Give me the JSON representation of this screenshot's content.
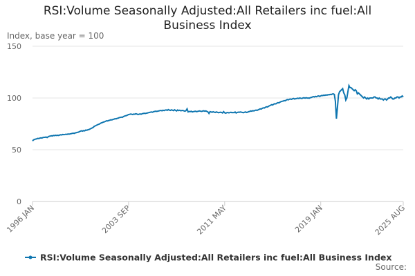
{
  "chart_data": {
    "type": "line",
    "title": "RSI:Volume Seasonally Adjusted:All Retailers inc fuel:All Business Index",
    "subtitle": "Index, base year = 100",
    "source": "Source:",
    "ylim": [
      0,
      150
    ],
    "yticks": [
      0,
      50,
      100,
      150
    ],
    "grid": true,
    "categories": [
      "1996 JAN",
      null,
      null,
      null,
      null,
      null,
      null,
      null,
      null,
      null,
      null,
      null,
      null,
      null,
      null,
      null,
      null,
      null,
      null,
      null,
      null,
      null,
      null,
      null,
      null,
      null,
      null,
      null,
      null,
      null,
      null,
      null,
      null,
      null,
      null,
      null,
      null,
      null,
      null,
      null,
      null,
      null,
      null,
      null,
      null,
      null,
      null,
      null,
      null,
      null,
      null,
      null,
      null,
      null,
      null,
      null,
      null,
      null,
      null,
      null,
      null,
      null,
      null,
      null,
      null,
      null,
      null,
      null,
      null,
      null,
      null,
      null,
      null,
      null,
      null,
      null,
      null,
      null,
      null,
      null,
      null,
      null,
      null,
      null,
      null,
      null,
      null,
      null,
      null,
      null,
      null,
      null,
      "2003 SEP",
      null,
      null,
      null,
      null,
      null,
      null,
      null,
      null,
      null,
      null,
      null,
      null,
      null,
      null,
      null,
      null,
      null,
      null,
      null,
      null,
      null,
      null,
      null,
      null,
      null,
      null,
      null,
      null,
      null,
      null,
      null,
      null,
      null,
      null,
      null,
      null,
      null,
      null,
      null,
      null,
      null,
      null,
      null,
      null,
      null,
      null,
      null,
      null,
      null,
      null,
      null,
      null,
      null,
      null,
      null,
      null,
      null,
      null,
      null,
      null,
      null,
      null,
      null,
      null,
      null,
      null,
      null,
      null,
      null,
      null,
      null,
      null,
      null,
      null,
      null,
      null,
      null,
      null,
      null,
      null,
      null,
      null,
      null,
      null,
      null,
      null,
      null,
      null,
      null,
      null,
      null,
      "2011 MAY",
      null,
      null,
      null,
      null,
      null,
      null,
      null,
      null,
      null,
      null,
      null,
      null,
      null,
      null,
      null,
      null,
      null,
      null,
      null,
      null,
      null,
      null,
      null,
      null,
      null,
      null,
      null,
      null,
      null,
      null,
      null,
      null,
      null,
      null,
      null,
      null,
      null,
      null,
      null,
      null,
      null,
      null,
      null,
      null,
      null,
      null,
      null,
      null,
      null,
      null,
      null,
      null,
      null,
      null,
      null,
      null,
      null,
      null,
      null,
      null,
      null,
      null,
      null,
      null,
      null,
      null,
      null,
      null,
      null,
      null,
      null,
      null,
      null,
      null,
      null,
      null,
      null,
      null,
      null,
      null,
      null,
      null,
      null,
      null,
      null,
      null,
      null,
      null,
      null,
      null,
      null,
      "2019 JAN",
      null,
      null,
      null,
      null,
      null,
      null,
      null,
      null,
      null,
      null,
      null,
      null,
      null,
      null,
      null,
      null,
      null,
      null,
      null,
      null,
      null,
      null,
      null,
      null,
      null,
      null,
      null,
      null,
      null,
      null,
      null,
      null,
      null,
      null,
      null,
      null,
      null,
      null,
      null,
      null,
      null,
      null,
      null,
      null,
      null,
      null,
      null,
      null,
      null,
      null,
      null,
      null,
      null,
      null,
      null,
      null,
      null,
      null,
      null,
      null,
      null,
      null,
      null,
      null,
      null,
      null,
      null,
      null,
      null,
      null,
      null,
      null,
      null,
      null,
      null,
      null,
      null,
      null,
      "2025 AUG"
    ],
    "series": [
      {
        "name": "RSI:Volume Seasonally Adjusted:All Retailers inc fuel:All Business Index",
        "color": "#0f76b0",
        "values": [
          58.5,
          59.5,
          60,
          60.3,
          60.5,
          61,
          60.8,
          61.2,
          61.5,
          61.3,
          61.8,
          62,
          62,
          62.3,
          61.8,
          62.5,
          63,
          63.2,
          63.5,
          63.3,
          63.8,
          63.6,
          64,
          63.8,
          64,
          63.8,
          64.2,
          64.5,
          64.3,
          64.8,
          64.5,
          64.7,
          65,
          64.8,
          65.2,
          65,
          65.3,
          65.5,
          65.8,
          66,
          65.8,
          66.3,
          66.5,
          66.8,
          67,
          67.5,
          68,
          68.3,
          68,
          68.5,
          68.2,
          69,
          68.8,
          69.3,
          69.5,
          70,
          70.5,
          71,
          71.5,
          72.5,
          73,
          73.5,
          74,
          74.5,
          74.8,
          75.5,
          76,
          76.3,
          76.8,
          77,
          77.5,
          78,
          77.8,
          78.3,
          78.5,
          79,
          78.8,
          79.3,
          79.5,
          80,
          79.8,
          80.3,
          80.5,
          81,
          81.2,
          81.5,
          81.3,
          82,
          82.5,
          82.8,
          83,
          83.5,
          84,
          84.2,
          84.5,
          84.3,
          84,
          84.5,
          84.3,
          84.8,
          84.5,
          84,
          84.3,
          84.6,
          84.2,
          84.8,
          85,
          85.2,
          85,
          85.3,
          85.5,
          85.8,
          86,
          86.3,
          86.5,
          86.2,
          86.8,
          87,
          87.2,
          87,
          87.3,
          87.5,
          87.8,
          88,
          87.6,
          88.2,
          87.8,
          88.3,
          88.5,
          88,
          88.8,
          88.3,
          88,
          88.5,
          88.2,
          87.8,
          88.6,
          88,
          87.5,
          88.4,
          87.8,
          88.2,
          87.6,
          87.9,
          88,
          87.5,
          87.2,
          87.8,
          89.5,
          86.5,
          87,
          86.8,
          87.2,
          86.5,
          86.8,
          87,
          87.2,
          86.8,
          87,
          87.3,
          87.5,
          87.2,
          87,
          87.4,
          87.6,
          87.2,
          87.5,
          87,
          86.5,
          85,
          86.8,
          86.5,
          86.2,
          86.7,
          86.3,
          86,
          86.5,
          86.2,
          85.8,
          86,
          86.2,
          86,
          85.5,
          86.8,
          85.7,
          85.3,
          85.8,
          86,
          85.6,
          85.9,
          86.2,
          85.8,
          86,
          85.8,
          86.5,
          85.5,
          86,
          86.3,
          86.2,
          86.5,
          86.3,
          86,
          85.8,
          86.2,
          86.5,
          86,
          86.3,
          86.8,
          87,
          87.5,
          87.2,
          87.8,
          87.5,
          88,
          88.3,
          88,
          88.5,
          89,
          89.5,
          89.3,
          90,
          90.5,
          90.3,
          91,
          91.5,
          91.3,
          92,
          92.5,
          93,
          93.5,
          93.2,
          94,
          94.5,
          94.3,
          95,
          95.5,
          95.3,
          96,
          96.5,
          96.8,
          97,
          97.5,
          97.3,
          98,
          98.5,
          98.2,
          98.8,
          99,
          98.7,
          99.2,
          99.5,
          99,
          99.3,
          99.5,
          99.8,
          99.5,
          100,
          99.7,
          99.5,
          100,
          100.2,
          99.8,
          100.3,
          99.9,
          100,
          99.8,
          100.3,
          100.5,
          101,
          101.3,
          101,
          101.5,
          101.2,
          101.8,
          102,
          101.5,
          102,
          102.5,
          102.3,
          102.8,
          102.5,
          103,
          102.7,
          103.2,
          103,
          103.5,
          103.2,
          103.8,
          104,
          103.5,
          97,
          80,
          91,
          103,
          106,
          107,
          108,
          109,
          105,
          103,
          98,
          100,
          106,
          112,
          110,
          110,
          109,
          108,
          107,
          108,
          107,
          104,
          105,
          104,
          103,
          102,
          101,
          100,
          101,
          100,
          99,
          100,
          99,
          100,
          100,
          100,
          100,
          101,
          101,
          100,
          100,
          99,
          100,
          99,
          99,
          99,
          98,
          99,
          99,
          98,
          99,
          100,
          100,
          101,
          100,
          99,
          99,
          100,
          100,
          101,
          101,
          100,
          101,
          101,
          102,
          101
        ]
      }
    ]
  }
}
